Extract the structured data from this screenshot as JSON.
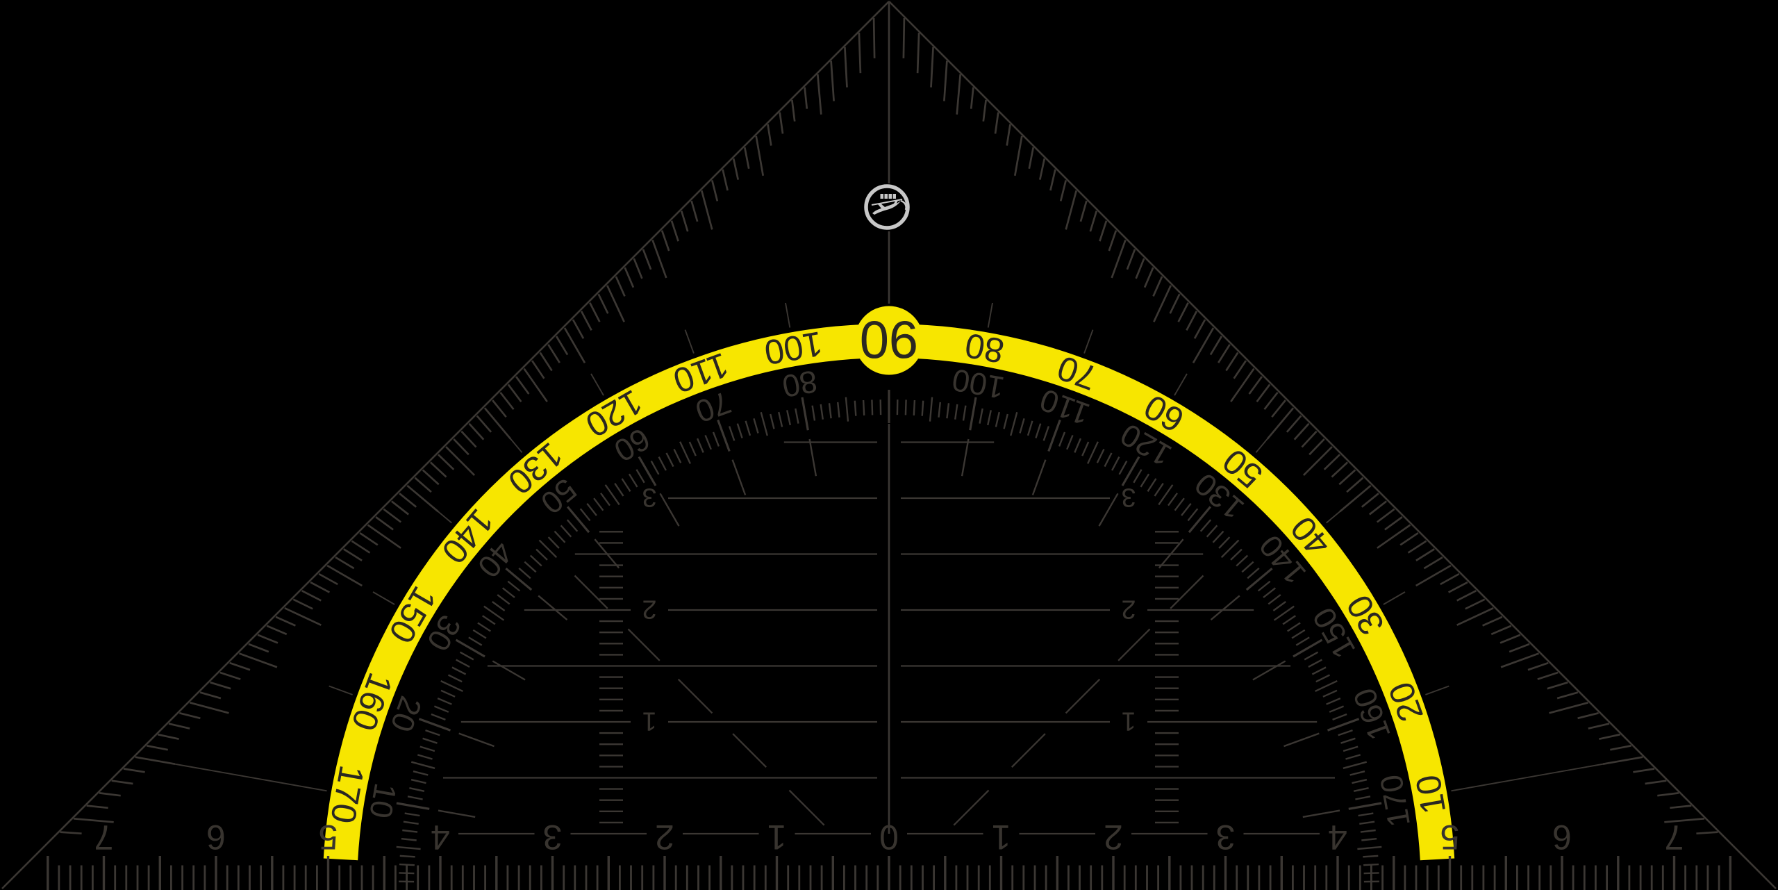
{
  "figure": {
    "kind": "set-square-protractor",
    "orientation": "apex-up, all numerals printed rotated 180 degrees"
  },
  "colors": {
    "background": "#000000",
    "arc_band": "#F7E600",
    "marking_dark": "#3B3733",
    "digit_dark": "#38342F",
    "band_digit": "#2A2722",
    "logo_gray": "#C8C8C8"
  },
  "protractor": {
    "badge_value": "90",
    "outer_scale_degrees": [
      10,
      20,
      30,
      40,
      50,
      60,
      70,
      80,
      100,
      110,
      120,
      130,
      140,
      150,
      160,
      170
    ],
    "inner_scale_degrees": [
      10,
      20,
      30,
      40,
      50,
      60,
      70,
      80,
      100,
      110,
      120,
      130,
      140,
      150,
      160,
      170
    ],
    "tick_step_degrees": 1
  },
  "ruler": {
    "unit_numbers": [
      "7",
      "6",
      "5",
      "4",
      "3",
      "2",
      "1",
      "0",
      "1",
      "2",
      "3",
      "4",
      "5",
      "6",
      "7"
    ]
  },
  "parallel_rows": {
    "row_labels": [
      "1",
      "2",
      "3"
    ]
  },
  "logo": {
    "icon": "leaping-cat-emblem"
  }
}
